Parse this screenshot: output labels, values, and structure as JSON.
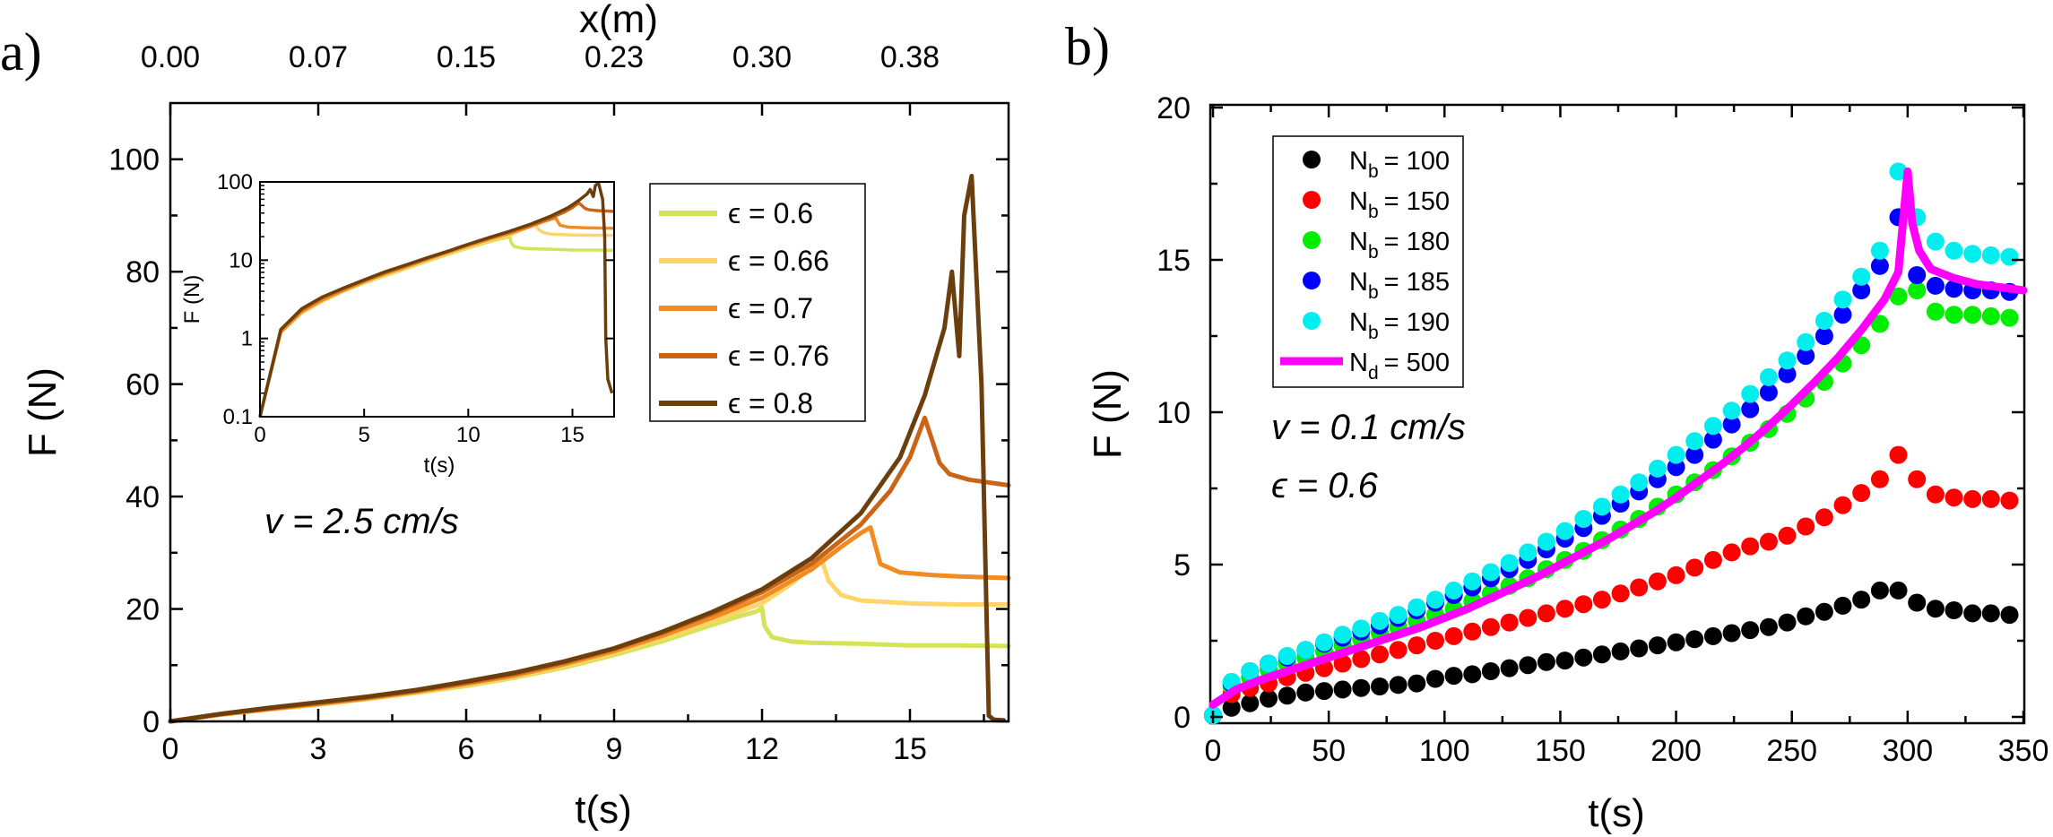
{
  "chart_data": [
    {
      "panel_label": "a)",
      "type": "line",
      "xlabel": "t(s)",
      "ylabel": "F (N)",
      "xlim": [
        0,
        17
      ],
      "ylim": [
        0,
        110
      ],
      "xticks": [
        "0",
        "3",
        "6",
        "9",
        "12",
        "15"
      ],
      "yticks": [
        "0",
        "20",
        "40",
        "60",
        "80",
        "100"
      ],
      "top_axis": {
        "label": "x(m)",
        "ticks": [
          "0.00",
          "0.07",
          "0.15",
          "0.23",
          "0.30",
          "0.38"
        ]
      },
      "annotation": "v = 2.5 cm/s",
      "series": [
        {
          "name": "ϵ = 0.6",
          "color": "#d4e35a",
          "x": [
            0,
            1,
            2,
            3,
            4,
            5,
            6,
            7,
            8,
            9,
            10,
            11,
            11.5,
            11.9,
            12.0,
            12.05,
            12.2,
            12.6,
            13,
            14,
            15,
            16,
            17
          ],
          "y": [
            0,
            1.2,
            2.1,
            3.0,
            4.0,
            5.1,
            6.3,
            7.8,
            9.6,
            11.8,
            14.3,
            17.2,
            18.6,
            19.6,
            20.2,
            17.0,
            15.0,
            14.2,
            14.0,
            13.8,
            13.5,
            13.5,
            13.4
          ]
        },
        {
          "name": "ϵ = 0.66",
          "color": "#fed568",
          "x": [
            0,
            1,
            2,
            3,
            4,
            5,
            6,
            7,
            8,
            9,
            10,
            11,
            12,
            12.6,
            13.0,
            13.2,
            13.35,
            13.6,
            14,
            15,
            16,
            17
          ],
          "y": [
            0,
            1.2,
            2.1,
            3.0,
            4.0,
            5.2,
            6.5,
            8.0,
            9.9,
            12.2,
            14.8,
            17.8,
            21.0,
            24.5,
            27.5,
            29.0,
            25.0,
            22.5,
            21.5,
            21.0,
            20.8,
            20.8
          ]
        },
        {
          "name": "ϵ = 0.7",
          "color": "#f28b22",
          "x": [
            0,
            1,
            2,
            3,
            4,
            5,
            6,
            7,
            8,
            9,
            10,
            11,
            12,
            13,
            13.6,
            14.0,
            14.2,
            14.4,
            14.8,
            15.5,
            16,
            17
          ],
          "y": [
            0,
            1.2,
            2.2,
            3.1,
            4.1,
            5.3,
            6.7,
            8.2,
            10.2,
            12.5,
            15.3,
            18.5,
            22.0,
            27.0,
            31.0,
            33.5,
            34.5,
            28.0,
            26.5,
            26.0,
            25.8,
            25.5
          ]
        },
        {
          "name": "ϵ = 0.76",
          "color": "#cb6416",
          "x": [
            0,
            1,
            2,
            3,
            4,
            5,
            6,
            7,
            8,
            9,
            10,
            11,
            12,
            13,
            14,
            14.6,
            15.0,
            15.3,
            15.45,
            15.6,
            15.8,
            16.2,
            17
          ],
          "y": [
            0,
            1.3,
            2.3,
            3.3,
            4.3,
            5.5,
            6.9,
            8.5,
            10.5,
            12.9,
            15.8,
            19.2,
            23.0,
            28.0,
            35.0,
            41.0,
            47.0,
            54.0,
            50.0,
            46.0,
            44.0,
            43.0,
            42.0
          ]
        },
        {
          "name": "ϵ = 0.8",
          "color": "#6b3f0d",
          "x": [
            0,
            1,
            2,
            3,
            4,
            5,
            6,
            7,
            8,
            9,
            10,
            11,
            12,
            13,
            14,
            14.8,
            15.3,
            15.7,
            15.85,
            16.0,
            16.1,
            16.25,
            16.45,
            16.55,
            16.6,
            16.7,
            16.9
          ],
          "y": [
            0,
            1.3,
            2.4,
            3.4,
            4.4,
            5.6,
            7.1,
            8.7,
            10.7,
            13.0,
            16.0,
            19.5,
            23.5,
            29.0,
            37.0,
            47.0,
            58.0,
            70.0,
            80.0,
            65.0,
            90.0,
            97.0,
            60.0,
            20.0,
            1.0,
            0.3,
            0.2
          ]
        }
      ],
      "inset": {
        "xlabel": "t(s)",
        "ylabel": "F (N)",
        "xlim": [
          0,
          17
        ],
        "ylim": [
          0.1,
          100
        ],
        "yscale": "log",
        "xticks": [
          "0",
          "5",
          "10",
          "15"
        ],
        "yticks": [
          "0.1",
          "1",
          "10",
          "100"
        ]
      }
    },
    {
      "panel_label": "b)",
      "type": "scatter",
      "xlabel": "t(s)",
      "ylabel": "F (N)",
      "xlim": [
        0,
        350
      ],
      "ylim": [
        0,
        20
      ],
      "xticks": [
        "0",
        "50",
        "100",
        "150",
        "200",
        "250",
        "300",
        "350"
      ],
      "yticks": [
        "0",
        "5",
        "10",
        "15",
        "20"
      ],
      "annotations": [
        "v = 0.1 cm/s",
        "ϵ = 0.6"
      ],
      "legend": [
        {
          "sym": "N",
          "sub": "b",
          "val": "= 100",
          "color": "#000000"
        },
        {
          "sym": "N",
          "sub": "b",
          "val": "= 150",
          "color": "#ff0000"
        },
        {
          "sym": "N",
          "sub": "b",
          "val": "= 180",
          "color": "#00ee00"
        },
        {
          "sym": "N",
          "sub": "b",
          "val": "= 185",
          "color": "#0000ff"
        },
        {
          "sym": "N",
          "sub": "b",
          "val": "= 190",
          "color": "#00eeee"
        },
        {
          "sym": "N",
          "sub": "d",
          "val": "= 500",
          "color": "#ff00ff"
        }
      ],
      "series": [
        {
          "name": "Nb = 100",
          "color": "#000000",
          "x": [
            0,
            8,
            16,
            24,
            32,
            40,
            48,
            56,
            64,
            72,
            80,
            88,
            96,
            104,
            112,
            120,
            128,
            136,
            144,
            152,
            160,
            168,
            176,
            184,
            192,
            200,
            208,
            216,
            224,
            232,
            240,
            248,
            256,
            264,
            272,
            280,
            288,
            296,
            304,
            312,
            320,
            328,
            336,
            344
          ],
          "y": [
            0.05,
            0.3,
            0.45,
            0.6,
            0.7,
            0.8,
            0.85,
            0.9,
            0.95,
            1.0,
            1.05,
            1.1,
            1.25,
            1.35,
            1.4,
            1.5,
            1.6,
            1.7,
            1.8,
            1.85,
            1.95,
            2.05,
            2.15,
            2.25,
            2.35,
            2.45,
            2.55,
            2.65,
            2.75,
            2.85,
            2.95,
            3.1,
            3.3,
            3.45,
            3.65,
            3.85,
            4.15,
            4.15,
            3.75,
            3.55,
            3.5,
            3.4,
            3.4,
            3.35
          ]
        },
        {
          "name": "Nb = 150",
          "color": "#ff0000",
          "x": [
            0,
            8,
            16,
            24,
            32,
            40,
            48,
            56,
            64,
            72,
            80,
            88,
            96,
            104,
            112,
            120,
            128,
            136,
            144,
            152,
            160,
            168,
            176,
            184,
            192,
            200,
            208,
            216,
            224,
            232,
            240,
            248,
            256,
            264,
            272,
            280,
            288,
            296,
            304,
            312,
            320,
            328,
            336,
            344
          ],
          "y": [
            0.05,
            0.75,
            0.95,
            1.1,
            1.3,
            1.45,
            1.6,
            1.75,
            1.9,
            2.05,
            2.2,
            2.35,
            2.5,
            2.65,
            2.8,
            2.95,
            3.1,
            3.25,
            3.4,
            3.55,
            3.7,
            3.85,
            4.05,
            4.25,
            4.45,
            4.65,
            4.9,
            5.15,
            5.4,
            5.6,
            5.75,
            5.95,
            6.25,
            6.55,
            6.95,
            7.35,
            7.8,
            8.6,
            7.8,
            7.3,
            7.2,
            7.15,
            7.15,
            7.1
          ]
        },
        {
          "name": "Nb = 180",
          "color": "#00ee00",
          "x": [
            0,
            8,
            16,
            24,
            32,
            40,
            48,
            56,
            64,
            72,
            80,
            88,
            96,
            104,
            112,
            120,
            128,
            136,
            144,
            152,
            160,
            168,
            176,
            184,
            192,
            200,
            208,
            216,
            224,
            232,
            240,
            248,
            256,
            264,
            272,
            280,
            288,
            296,
            304,
            312,
            320,
            328,
            336,
            344
          ],
          "y": [
            0.05,
            1.0,
            1.3,
            1.55,
            1.75,
            1.95,
            2.15,
            2.35,
            2.55,
            2.75,
            2.95,
            3.15,
            3.35,
            3.55,
            3.8,
            4.05,
            4.3,
            4.55,
            4.85,
            5.15,
            5.45,
            5.8,
            6.15,
            6.5,
            6.9,
            7.3,
            7.7,
            8.1,
            8.55,
            9.0,
            9.45,
            9.95,
            10.45,
            11.0,
            11.6,
            12.2,
            12.9,
            13.8,
            14.0,
            13.3,
            13.2,
            13.2,
            13.15,
            13.1
          ]
        },
        {
          "name": "Nb = 185",
          "color": "#0000ff",
          "x": [
            0,
            8,
            16,
            24,
            32,
            40,
            48,
            56,
            64,
            72,
            80,
            88,
            96,
            104,
            112,
            120,
            128,
            136,
            144,
            152,
            160,
            168,
            176,
            184,
            192,
            200,
            208,
            216,
            224,
            232,
            240,
            248,
            256,
            264,
            272,
            280,
            288,
            296,
            304,
            312,
            320,
            328,
            336,
            344
          ],
          "y": [
            0.05,
            1.1,
            1.5,
            1.75,
            1.95,
            2.2,
            2.4,
            2.6,
            2.8,
            3.0,
            3.25,
            3.5,
            3.75,
            4.0,
            4.25,
            4.55,
            4.85,
            5.15,
            5.5,
            5.85,
            6.2,
            6.6,
            7.0,
            7.4,
            7.8,
            8.2,
            8.6,
            9.1,
            9.6,
            10.1,
            10.65,
            11.25,
            11.85,
            12.5,
            13.2,
            14.0,
            14.8,
            16.4,
            14.5,
            14.15,
            14.05,
            14.0,
            14.0,
            13.95
          ]
        },
        {
          "name": "Nb = 190",
          "color": "#00eeee",
          "x": [
            0,
            8,
            16,
            24,
            32,
            40,
            48,
            56,
            64,
            72,
            80,
            88,
            96,
            104,
            112,
            120,
            128,
            136,
            144,
            152,
            160,
            168,
            176,
            184,
            192,
            200,
            208,
            216,
            224,
            232,
            240,
            248,
            256,
            264,
            272,
            280,
            288,
            296,
            304,
            312,
            320,
            328,
            336,
            344
          ],
          "y": [
            0.05,
            1.15,
            1.5,
            1.75,
            2.0,
            2.2,
            2.45,
            2.7,
            2.9,
            3.15,
            3.35,
            3.6,
            3.85,
            4.15,
            4.45,
            4.75,
            5.05,
            5.4,
            5.75,
            6.1,
            6.5,
            6.9,
            7.3,
            7.7,
            8.15,
            8.6,
            9.05,
            9.55,
            10.05,
            10.6,
            11.15,
            11.7,
            12.3,
            13.0,
            13.7,
            14.45,
            15.3,
            17.9,
            16.4,
            15.6,
            15.3,
            15.2,
            15.15,
            15.1
          ]
        },
        {
          "name": "Nd = 500",
          "color": "#ff00ff",
          "mode": "line",
          "x": [
            0,
            10,
            20,
            30,
            40,
            50,
            60,
            70,
            80,
            90,
            100,
            110,
            120,
            130,
            140,
            150,
            160,
            170,
            180,
            190,
            200,
            210,
            220,
            230,
            240,
            250,
            260,
            270,
            280,
            290,
            296,
            300,
            302,
            305,
            310,
            320,
            330,
            340,
            350
          ],
          "y": [
            0.4,
            0.9,
            1.2,
            1.45,
            1.7,
            1.95,
            2.2,
            2.45,
            2.7,
            2.95,
            3.25,
            3.55,
            3.9,
            4.25,
            4.6,
            5.0,
            5.4,
            5.8,
            6.25,
            6.7,
            7.2,
            7.75,
            8.3,
            8.9,
            9.55,
            10.25,
            11.0,
            11.8,
            12.7,
            13.7,
            14.6,
            17.9,
            16.2,
            15.3,
            14.7,
            14.4,
            14.2,
            14.1,
            14.0
          ]
        }
      ]
    }
  ]
}
